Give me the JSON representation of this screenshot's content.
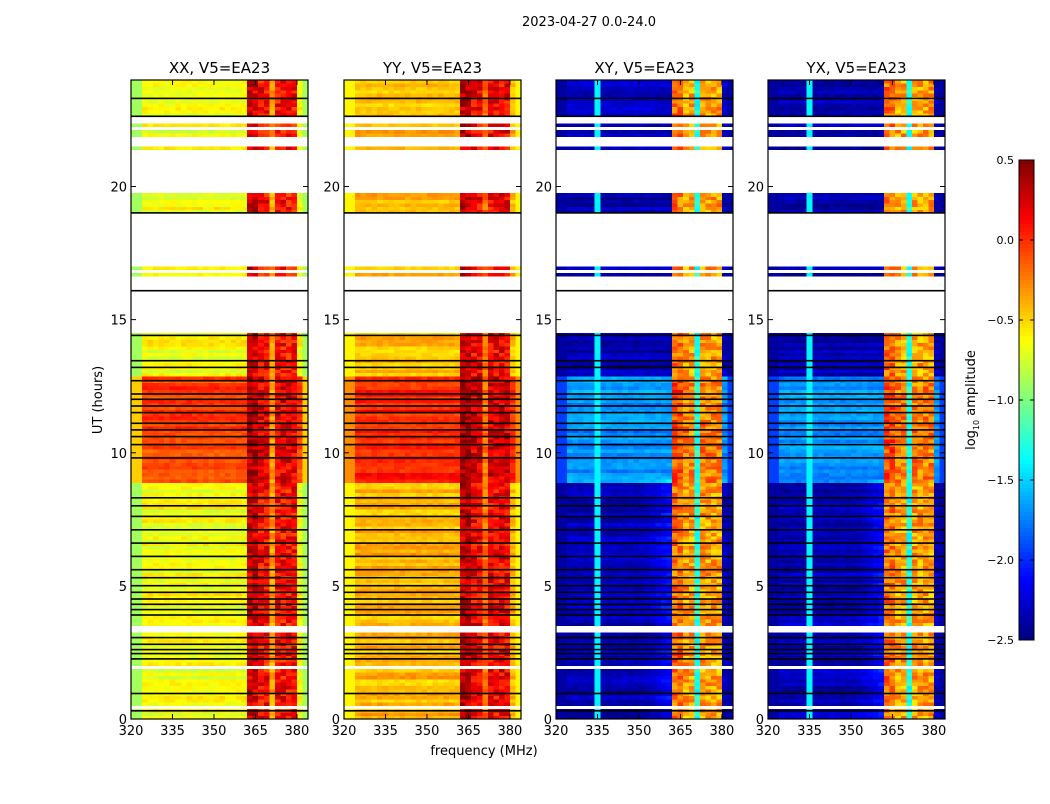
{
  "chart_data": {
    "type": "heatmap",
    "title": "2023-04-27 0.0-24.0",
    "xlabel": "frequency (MHz)",
    "ylabel": "UT (hours)",
    "xlim": [
      320,
      384
    ],
    "ylim": [
      0,
      24
    ],
    "xticks": [
      "320",
      "335",
      "350",
      "365",
      "380"
    ],
    "xtick_values": [
      320,
      335,
      350,
      365,
      380
    ],
    "yticks": [
      "0",
      "5",
      "10",
      "15",
      "20"
    ],
    "ytick_values": [
      0,
      5,
      10,
      15,
      20
    ],
    "colorbar": {
      "label_main": "log",
      "label_sub": "10",
      "label_rest": " amplitude",
      "range": [
        -2.5,
        0.5
      ],
      "ticks": [
        "0.5",
        "0.0",
        "−0.5",
        "−1.0",
        "−1.5",
        "−2.0",
        "−2.5"
      ],
      "tick_values": [
        0.5,
        0.0,
        -0.5,
        -1.0,
        -1.5,
        -2.0,
        -2.5
      ],
      "colormap": "jet"
    },
    "active_periods": [
      [
        8.8,
        12.8
      ]
    ],
    "gaps_hours": [
      [
        14.45,
        16.6
      ],
      [
        16.7,
        16.93
      ],
      [
        17.0,
        19.0
      ],
      [
        19.75,
        21.35
      ],
      [
        21.5,
        21.85
      ],
      [
        21.95,
        22.05
      ],
      [
        22.1,
        22.25
      ],
      [
        22.35,
        22.45
      ],
      [
        22.55,
        22.63
      ],
      [
        0.42,
        0.48
      ],
      [
        1.93,
        2.0
      ],
      [
        2.08,
        2.13
      ],
      [
        3.28,
        3.35
      ],
      [
        3.43,
        3.5
      ],
      [
        3.58,
        3.63
      ],
      [
        8.72,
        8.78
      ],
      [
        8.88,
        8.93
      ],
      [
        12.48,
        12.53
      ],
      [
        12.98,
        13.03
      ],
      [
        13.98,
        14.03
      ]
    ],
    "flagged_lines_hours": [
      0.3,
      0.95,
      2.25,
      2.45,
      2.6,
      2.8,
      3.05,
      3.9,
      4.1,
      4.3,
      4.5,
      4.75,
      5.0,
      5.3,
      5.6,
      6.1,
      6.6,
      7.1,
      7.6,
      8.0,
      8.3,
      9.8,
      10.3,
      10.6,
      10.85,
      11.1,
      11.5,
      11.75,
      12.0,
      12.2,
      12.7,
      13.2,
      13.45,
      14.4,
      16.08,
      19.0,
      22.63,
      23.3
    ],
    "rfi_subbands_mhz": [
      [
        362,
        366
      ],
      [
        367,
        371
      ],
      [
        372,
        376
      ],
      [
        377,
        380
      ]
    ],
    "panels": [
      {
        "title": "XX, V5=EA23",
        "baseline": -0.65,
        "edge": -0.9,
        "active_boost": 0.6,
        "band_level": 0.1,
        "divider_level": -0.35,
        "cyan_channel": null
      },
      {
        "title": "YY, V5=EA23",
        "baseline": -0.42,
        "edge": -0.6,
        "active_boost": 0.45,
        "band_level": 0.15,
        "divider_level": -0.2,
        "cyan_channel": null
      },
      {
        "title": "XY, V5=EA23",
        "baseline": -2.35,
        "edge": -2.4,
        "active_boost": 0.65,
        "band_level": -0.35,
        "divider_level": -1.3,
        "cyan_channel": 335
      },
      {
        "title": "YX, V5=EA23",
        "baseline": -2.35,
        "edge": -2.4,
        "active_boost": 0.65,
        "band_level": -0.35,
        "divider_level": -1.3,
        "cyan_channel": 335
      }
    ]
  }
}
